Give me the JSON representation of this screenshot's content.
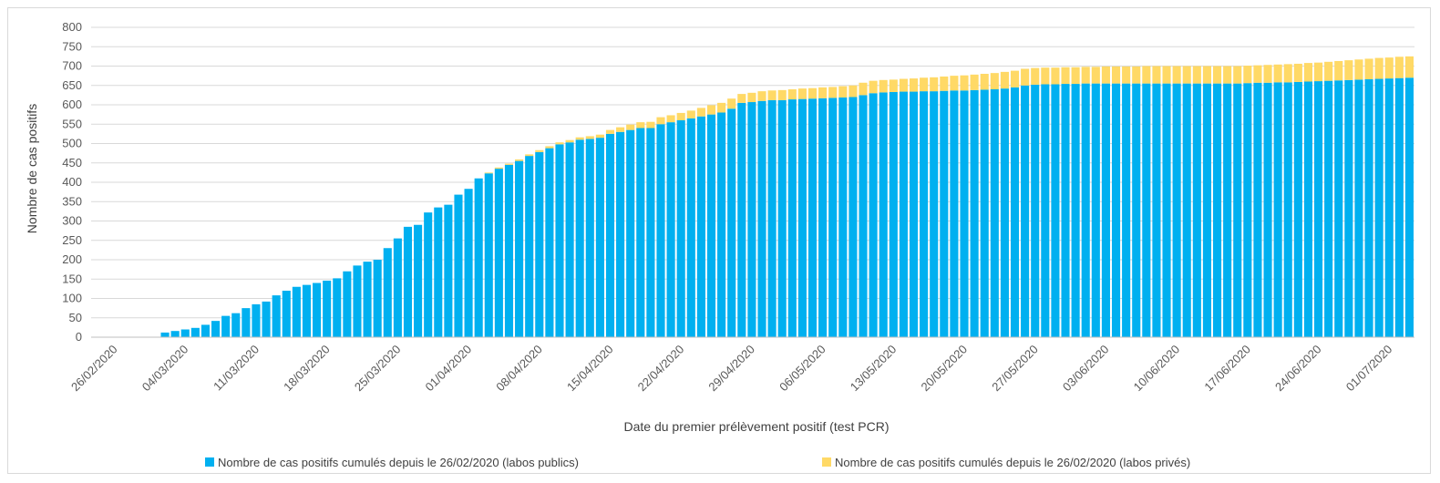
{
  "chart_data": {
    "type": "bar",
    "stacked": true,
    "title": "",
    "xlabel": "Date du premier prélèvement positif (test PCR)",
    "ylabel": "Nombre de cas positifs",
    "ylim": [
      0,
      800
    ],
    "ytick_step": 50,
    "grid": true,
    "legend_position": "bottom",
    "x_start": "26/02/2020",
    "x_end": "03/07/2020",
    "xtick_labels": [
      "26/02/2020",
      "04/03/2020",
      "11/03/2020",
      "18/03/2020",
      "25/03/2020",
      "01/04/2020",
      "08/04/2020",
      "15/04/2020",
      "22/04/2020",
      "29/04/2020",
      "06/05/2020",
      "13/05/2020",
      "20/05/2020",
      "27/05/2020",
      "03/06/2020",
      "10/06/2020",
      "17/06/2020",
      "24/06/2020",
      "01/07/2020"
    ],
    "series": [
      {
        "name": "Nombre de cas positifs cumulés depuis le 26/02/2020 (labos publics)",
        "color": "#00b0f0",
        "values": [
          0,
          0,
          0,
          0,
          0,
          12,
          16,
          20,
          24,
          32,
          42,
          55,
          62,
          75,
          85,
          92,
          108,
          120,
          130,
          135,
          140,
          146,
          152,
          170,
          185,
          195,
          200,
          230,
          255,
          285,
          290,
          322,
          335,
          342,
          368,
          383,
          410,
          423,
          435,
          445,
          455,
          468,
          478,
          488,
          498,
          503,
          510,
          512,
          515,
          525,
          530,
          535,
          540,
          540,
          550,
          555,
          560,
          565,
          570,
          575,
          580,
          590,
          605,
          607,
          610,
          612,
          612,
          614,
          615,
          616,
          617,
          618,
          619,
          620,
          625,
          630,
          632,
          633,
          634,
          634,
          635,
          635,
          636,
          637,
          637,
          638,
          639,
          640,
          642,
          645,
          650,
          652,
          653,
          653,
          654,
          654,
          655,
          655,
          655,
          655,
          655,
          655,
          655,
          655,
          655,
          655,
          655,
          655,
          655,
          655,
          655,
          655,
          656,
          657,
          657,
          658,
          658,
          659,
          660,
          661,
          662,
          663,
          664,
          665,
          666,
          667,
          668,
          669,
          670
        ]
      },
      {
        "name": "Nombre de cas positifs cumulés depuis le 26/02/2020 (labos privés)",
        "color": "#ffd966",
        "values": [
          0,
          0,
          0,
          0,
          0,
          0,
          0,
          0,
          0,
          0,
          0,
          0,
          0,
          0,
          0,
          0,
          0,
          0,
          0,
          0,
          0,
          0,
          0,
          0,
          0,
          0,
          0,
          0,
          0,
          0,
          0,
          0,
          0,
          0,
          0,
          0,
          0,
          2,
          3,
          3,
          4,
          4,
          5,
          5,
          5,
          6,
          6,
          7,
          8,
          10,
          12,
          14,
          15,
          16,
          18,
          18,
          19,
          20,
          22,
          24,
          25,
          26,
          23,
          24,
          25,
          25,
          26,
          26,
          27,
          27,
          28,
          28,
          29,
          30,
          32,
          32,
          32,
          32,
          33,
          34,
          35,
          36,
          37,
          38,
          39,
          40,
          41,
          42,
          43,
          43,
          43,
          43,
          43,
          43,
          43,
          43,
          43,
          43,
          44,
          44,
          44,
          44,
          45,
          45,
          45,
          45,
          45,
          45,
          45,
          45,
          45,
          45,
          45,
          45,
          46,
          46,
          47,
          47,
          48,
          48,
          49,
          50,
          51,
          52,
          53,
          54,
          54,
          55,
          55
        ]
      }
    ]
  }
}
